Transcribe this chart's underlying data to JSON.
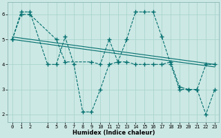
{
  "xlabel": "Humidex (Indice chaleur)",
  "bg_color": "#cce8e4",
  "grid_color": "#aad4ce",
  "line_color": "#006e6e",
  "xlim": [
    -0.5,
    23.5
  ],
  "ylim": [
    1.7,
    6.5
  ],
  "xticks": [
    0,
    1,
    2,
    4,
    5,
    6,
    7,
    8,
    9,
    10,
    11,
    12,
    13,
    14,
    15,
    16,
    17,
    18,
    19,
    20,
    21,
    22,
    23
  ],
  "yticks": [
    2,
    3,
    4,
    5,
    6
  ],
  "xlabel_fontsize": 6.0,
  "tick_fontsize": 5.0,
  "series": [
    {
      "x": [
        0,
        1,
        2,
        4,
        5,
        6,
        7,
        8,
        9,
        10,
        11,
        12,
        13,
        14,
        15,
        16,
        17,
        18,
        19,
        20,
        21,
        22,
        23
      ],
      "y": [
        5.0,
        6.1,
        6.1,
        4.0,
        4.0,
        5.1,
        4.0,
        2.1,
        2.1,
        3.0,
        4.0,
        4.1,
        5.0,
        6.1,
        6.1,
        6.1,
        5.1,
        4.0,
        3.0,
        3.0,
        3.0,
        2.0,
        3.0
      ],
      "linestyle": "--",
      "linewidth": 0.8,
      "marker": "+",
      "markersize": 4
    },
    {
      "x": [
        0,
        1,
        2,
        5,
        6,
        9,
        10,
        11,
        12,
        13,
        14,
        15,
        16,
        17,
        18,
        19,
        20,
        21,
        22,
        23
      ],
      "y": [
        5.0,
        6.0,
        6.0,
        5.0,
        4.1,
        4.1,
        4.0,
        5.0,
        4.1,
        4.1,
        4.0,
        4.0,
        4.0,
        4.0,
        4.1,
        3.1,
        3.0,
        3.0,
        4.0,
        4.0
      ],
      "linestyle": "--",
      "linewidth": 0.8,
      "marker": "+",
      "markersize": 4
    },
    {
      "x": [
        0,
        23
      ],
      "y": [
        5.1,
        4.0
      ],
      "linestyle": "-",
      "linewidth": 0.8,
      "marker": null,
      "markersize": 0
    },
    {
      "x": [
        0,
        23
      ],
      "y": [
        5.0,
        3.9
      ],
      "linestyle": "-",
      "linewidth": 0.8,
      "marker": null,
      "markersize": 0
    }
  ]
}
